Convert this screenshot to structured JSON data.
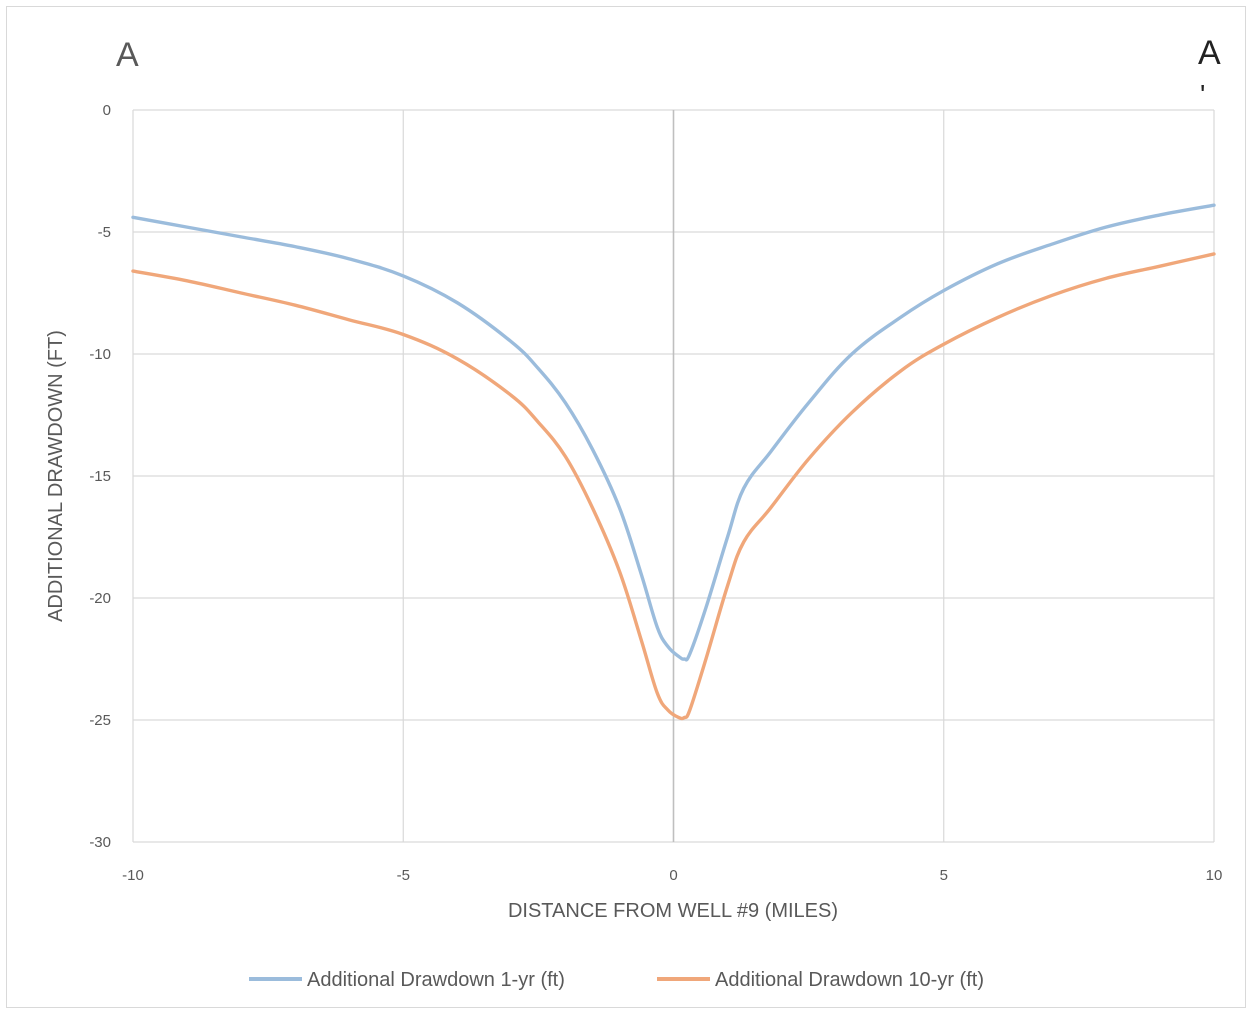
{
  "section_labels": {
    "left": "A",
    "right": "A",
    "right_mark": "'"
  },
  "colors": {
    "series_1yr": "#9bbcdc",
    "series_10yr": "#f0a77a",
    "grid": "#d9d9d9",
    "zero_line": "#bfbfbf",
    "text": "#595959"
  },
  "chart_data": {
    "type": "line",
    "title": "",
    "xlabel": "DISTANCE FROM WELL #9 (MILES)",
    "ylabel": "ADDITIONAL DRAWDOWN (FT)",
    "xlim": [
      -10,
      10
    ],
    "ylim": [
      -30,
      0
    ],
    "xticks": [
      -10,
      -5,
      0,
      5,
      10
    ],
    "yticks": [
      0,
      -5,
      -10,
      -15,
      -20,
      -25,
      -30
    ],
    "xtick_labels": [
      "-10",
      "-5",
      "0",
      "5",
      "10"
    ],
    "ytick_labels": [
      "0",
      "-5",
      "-10",
      "-15",
      "-20",
      "-25",
      "-30"
    ],
    "grid": true,
    "legend_position": "bottom",
    "series": [
      {
        "name": "Additional Drawdown 1-yr (ft)",
        "x": [
          -10,
          -9,
          -8,
          -7,
          -6,
          -5,
          -4,
          -3,
          -2.5,
          -2,
          -1.5,
          -1,
          -0.6,
          -0.3,
          -0.1,
          0.1,
          0.2,
          0.3,
          0.6,
          1,
          1.3,
          1.8,
          2.5,
          3.3,
          4.2,
          5,
          6,
          7,
          8,
          9,
          10
        ],
        "y": [
          -4.4,
          -4.8,
          -5.2,
          -5.6,
          -6.1,
          -6.8,
          -7.9,
          -9.5,
          -10.6,
          -12.0,
          -13.9,
          -16.3,
          -19.0,
          -21.2,
          -22.0,
          -22.4,
          -22.5,
          -22.3,
          -20.4,
          -17.5,
          -15.5,
          -14.0,
          -12.0,
          -10.0,
          -8.5,
          -7.4,
          -6.3,
          -5.5,
          -4.8,
          -4.3,
          -3.9
        ]
      },
      {
        "name": "Additional Drawdown 10-yr (ft)",
        "x": [
          -10,
          -9,
          -8,
          -7,
          -6,
          -5,
          -4,
          -3,
          -2.5,
          -2,
          -1.5,
          -1,
          -0.6,
          -0.3,
          -0.1,
          0.1,
          0.2,
          0.3,
          0.6,
          1,
          1.3,
          1.8,
          2.5,
          3.3,
          4.2,
          5,
          6,
          7,
          8,
          9,
          10
        ],
        "y": [
          -6.6,
          -7.0,
          -7.5,
          -8.0,
          -8.6,
          -9.2,
          -10.2,
          -11.7,
          -12.8,
          -14.2,
          -16.3,
          -18.9,
          -21.7,
          -23.9,
          -24.6,
          -24.9,
          -24.9,
          -24.6,
          -22.5,
          -19.5,
          -17.7,
          -16.3,
          -14.3,
          -12.4,
          -10.7,
          -9.6,
          -8.5,
          -7.6,
          -6.9,
          -6.4,
          -5.9
        ]
      }
    ]
  }
}
